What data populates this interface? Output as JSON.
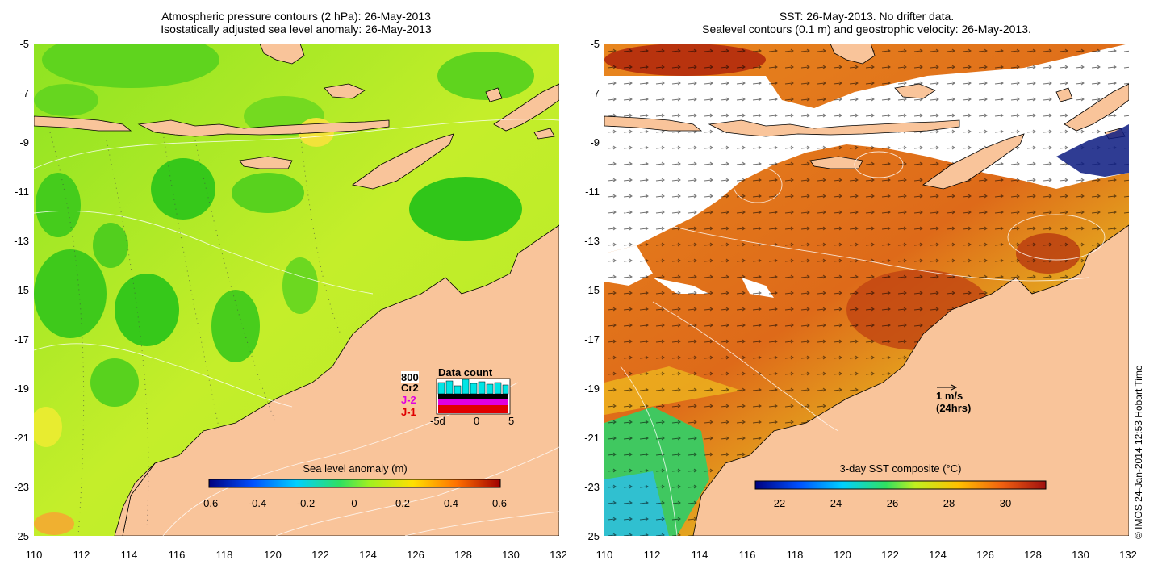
{
  "left_panel": {
    "title_line1": "Atmospheric pressure contours (2 hPa): 26-May-2013",
    "title_line2": "Isostatically adjusted sea level anomaly: 26-May-2013",
    "y_ticks": [
      "-5",
      "-7",
      "-9",
      "-11",
      "-13",
      "-15",
      "-17",
      "-19",
      "-21",
      "-23",
      "-25"
    ],
    "x_ticks": [
      "110",
      "112",
      "114",
      "116",
      "118",
      "120",
      "122",
      "124",
      "126",
      "128",
      "130",
      "132"
    ],
    "colorbar": {
      "title": "Sea level anomaly (m)",
      "ticks": [
        "-0.6",
        "-0.4",
        "-0.2",
        "0",
        "0.2",
        "0.4",
        "0.6"
      ]
    },
    "data_count": {
      "title": "Data count",
      "satellites": [
        "800",
        "Cr2",
        "J-2",
        "J-1"
      ],
      "satellite_colors": [
        "#00e5e5",
        "#000000",
        "#e000e0",
        "#e00000"
      ],
      "axis_ticks": [
        "-5d",
        "0",
        "5"
      ]
    }
  },
  "right_panel": {
    "title_line1": "SST: 26-May-2013. No drifter data.",
    "title_line2": "Sealevel contours (0.1 m) and geostrophic velocity: 26-May-2013.",
    "y_ticks": [
      "-5",
      "-7",
      "-9",
      "-11",
      "-13",
      "-15",
      "-17",
      "-19",
      "-21",
      "-23",
      "-25"
    ],
    "x_ticks": [
      "110",
      "112",
      "114",
      "116",
      "118",
      "120",
      "122",
      "124",
      "126",
      "128",
      "130",
      "132"
    ],
    "colorbar": {
      "title": "3-day SST composite (°C)",
      "ticks": [
        "22",
        "24",
        "26",
        "28",
        "30"
      ]
    },
    "velocity_key": {
      "line1": "1 m/s",
      "line2": "(24hrs)"
    }
  },
  "credit": "© IMOS 24-Jan-2014 12:53 Hobart Time",
  "colors": {
    "land": "#f9c49a",
    "sea_green": "#7fe021",
    "sea_yellow": "#c6f02a",
    "sst_orange": "#e0701a",
    "sst_red": "#b8330e",
    "no_data": "#ffffff"
  }
}
